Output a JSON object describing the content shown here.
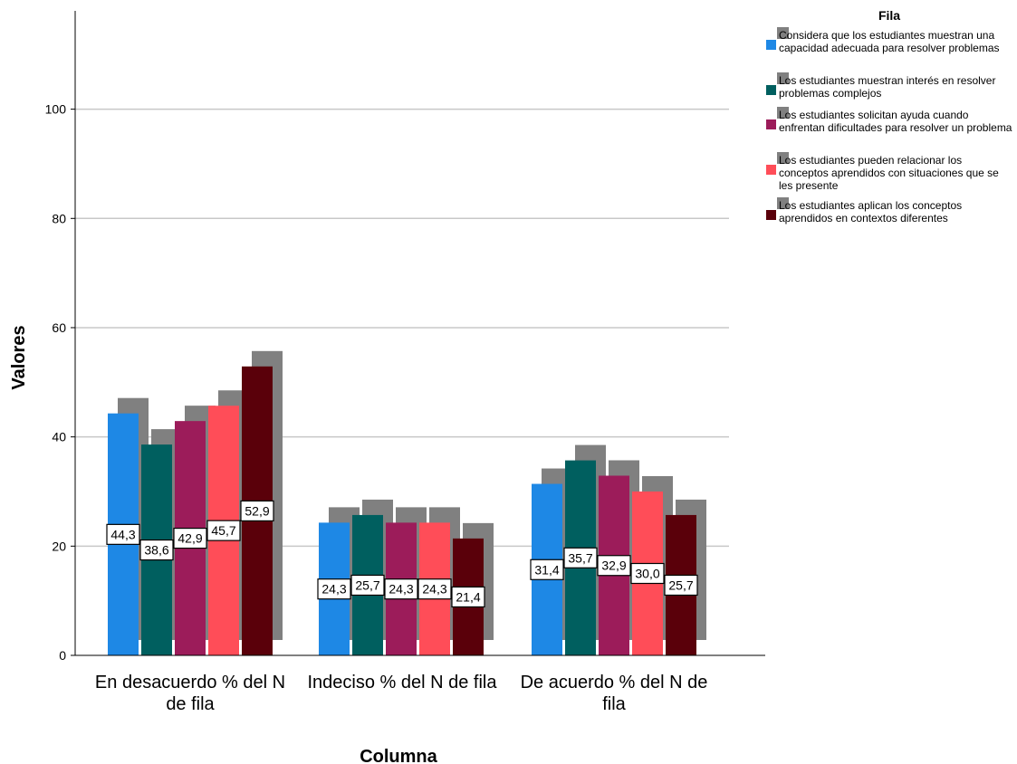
{
  "chart_data": {
    "type": "bar",
    "xlabel": "Columna",
    "ylabel": "Valores",
    "ylim": [
      0,
      118
    ],
    "yticks": [
      0,
      20,
      40,
      60,
      80,
      100
    ],
    "grid": true,
    "legend_title": "Fila",
    "legend_position": "right",
    "categories": [
      "En desacuerdo % del N de fila",
      "Indeciso % del N de fila",
      "De acuerdo % del N de fila"
    ],
    "series": [
      {
        "name": "Considera que los estudiantes muestran una capacidad adecuada para resolver problemas",
        "color": "#1e88e5",
        "values": [
          44.3,
          24.3,
          31.4
        ],
        "labels": [
          "44,3",
          "24,3",
          "31,4"
        ]
      },
      {
        "name": "Los estudiantes muestran interés en resolver problemas complejos",
        "color": "#005f5f",
        "values": [
          38.6,
          25.7,
          35.7
        ],
        "labels": [
          "38,6",
          "25,7",
          "35,7"
        ]
      },
      {
        "name": "Los estudiantes solicitan ayuda cuando enfrentan dificultades para resolver un problema",
        "color": "#9c1c5a",
        "values": [
          42.9,
          24.3,
          32.9
        ],
        "labels": [
          "42,9",
          "24,3",
          "32,9"
        ]
      },
      {
        "name": "Los estudiantes pueden relacionar los conceptos aprendidos con situaciones que se les presente",
        "color": "#ff4d58",
        "values": [
          45.7,
          24.3,
          30.0
        ],
        "labels": [
          "45,7",
          "24,3",
          "30,0"
        ]
      },
      {
        "name": "Los estudiantes aplican los conceptos aprendidos en contextos diferentes",
        "color": "#5a000a",
        "values": [
          52.9,
          21.4,
          25.7
        ],
        "labels": [
          "52,9",
          "21,4",
          "25,7"
        ]
      }
    ],
    "shadow_color": "#808080"
  }
}
